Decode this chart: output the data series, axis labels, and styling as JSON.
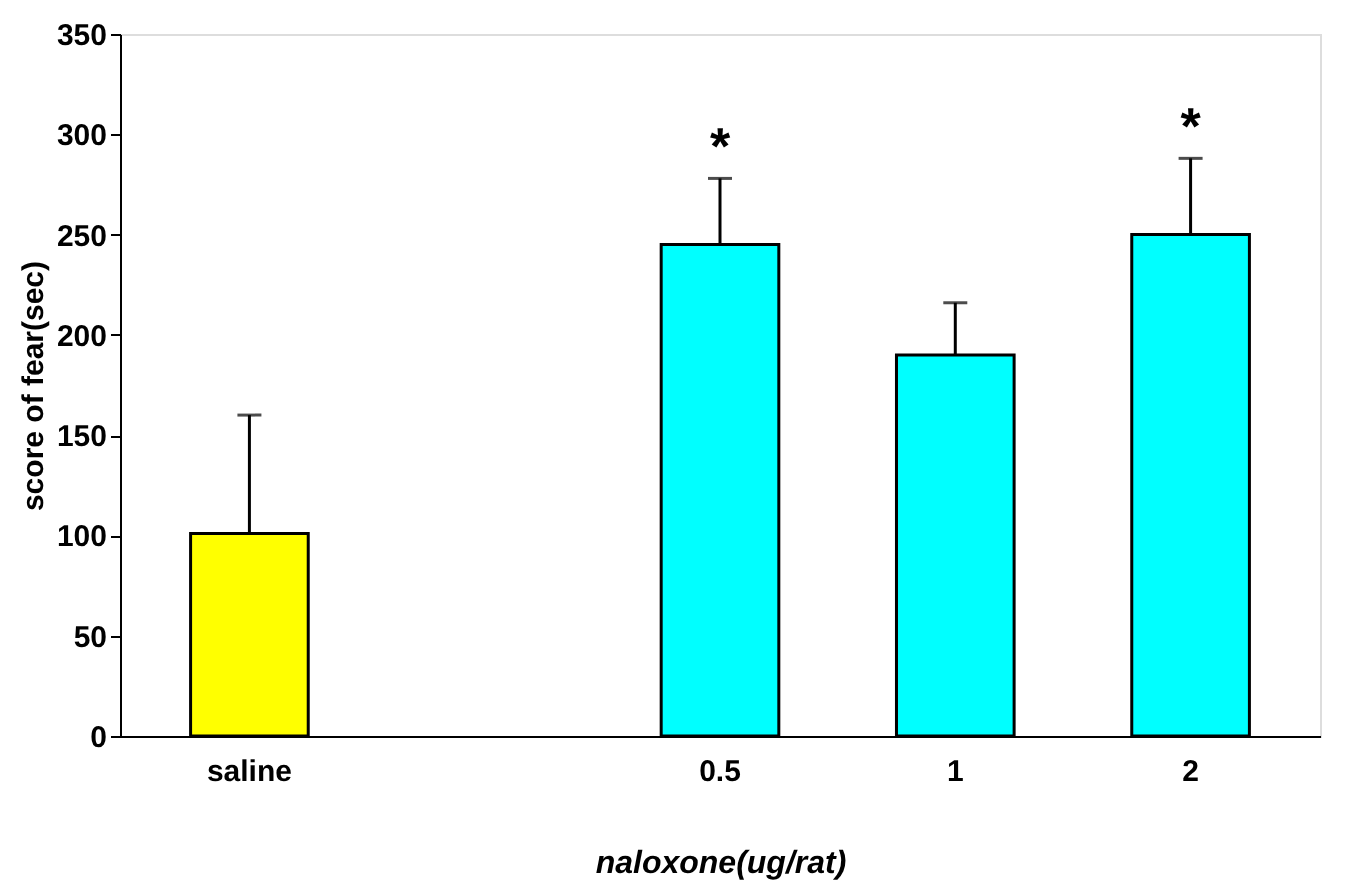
{
  "chart_data": {
    "type": "bar",
    "xlabel": "naloxone(ug/rat)",
    "ylabel": "score of fear(sec)",
    "categories": [
      "saline",
      null,
      "0.5",
      "1",
      "2"
    ],
    "values": [
      101,
      null,
      245,
      190,
      250
    ],
    "colors": [
      "#ffff00",
      null,
      "#00ffff",
      "#00ffff",
      "#00ffff"
    ],
    "errors": [
      [
        101,
        160
      ],
      null,
      [
        245,
        278
      ],
      [
        190,
        216
      ],
      [
        250,
        288
      ]
    ],
    "ylim": [
      0,
      350
    ],
    "yticks": [
      0,
      50,
      100,
      150,
      200,
      250,
      300,
      350
    ],
    "grid": false,
    "annotations": [
      {
        "text": "*",
        "x": "0.5",
        "y": 278
      },
      {
        "text": "*",
        "x": "2",
        "y": 288
      }
    ]
  }
}
